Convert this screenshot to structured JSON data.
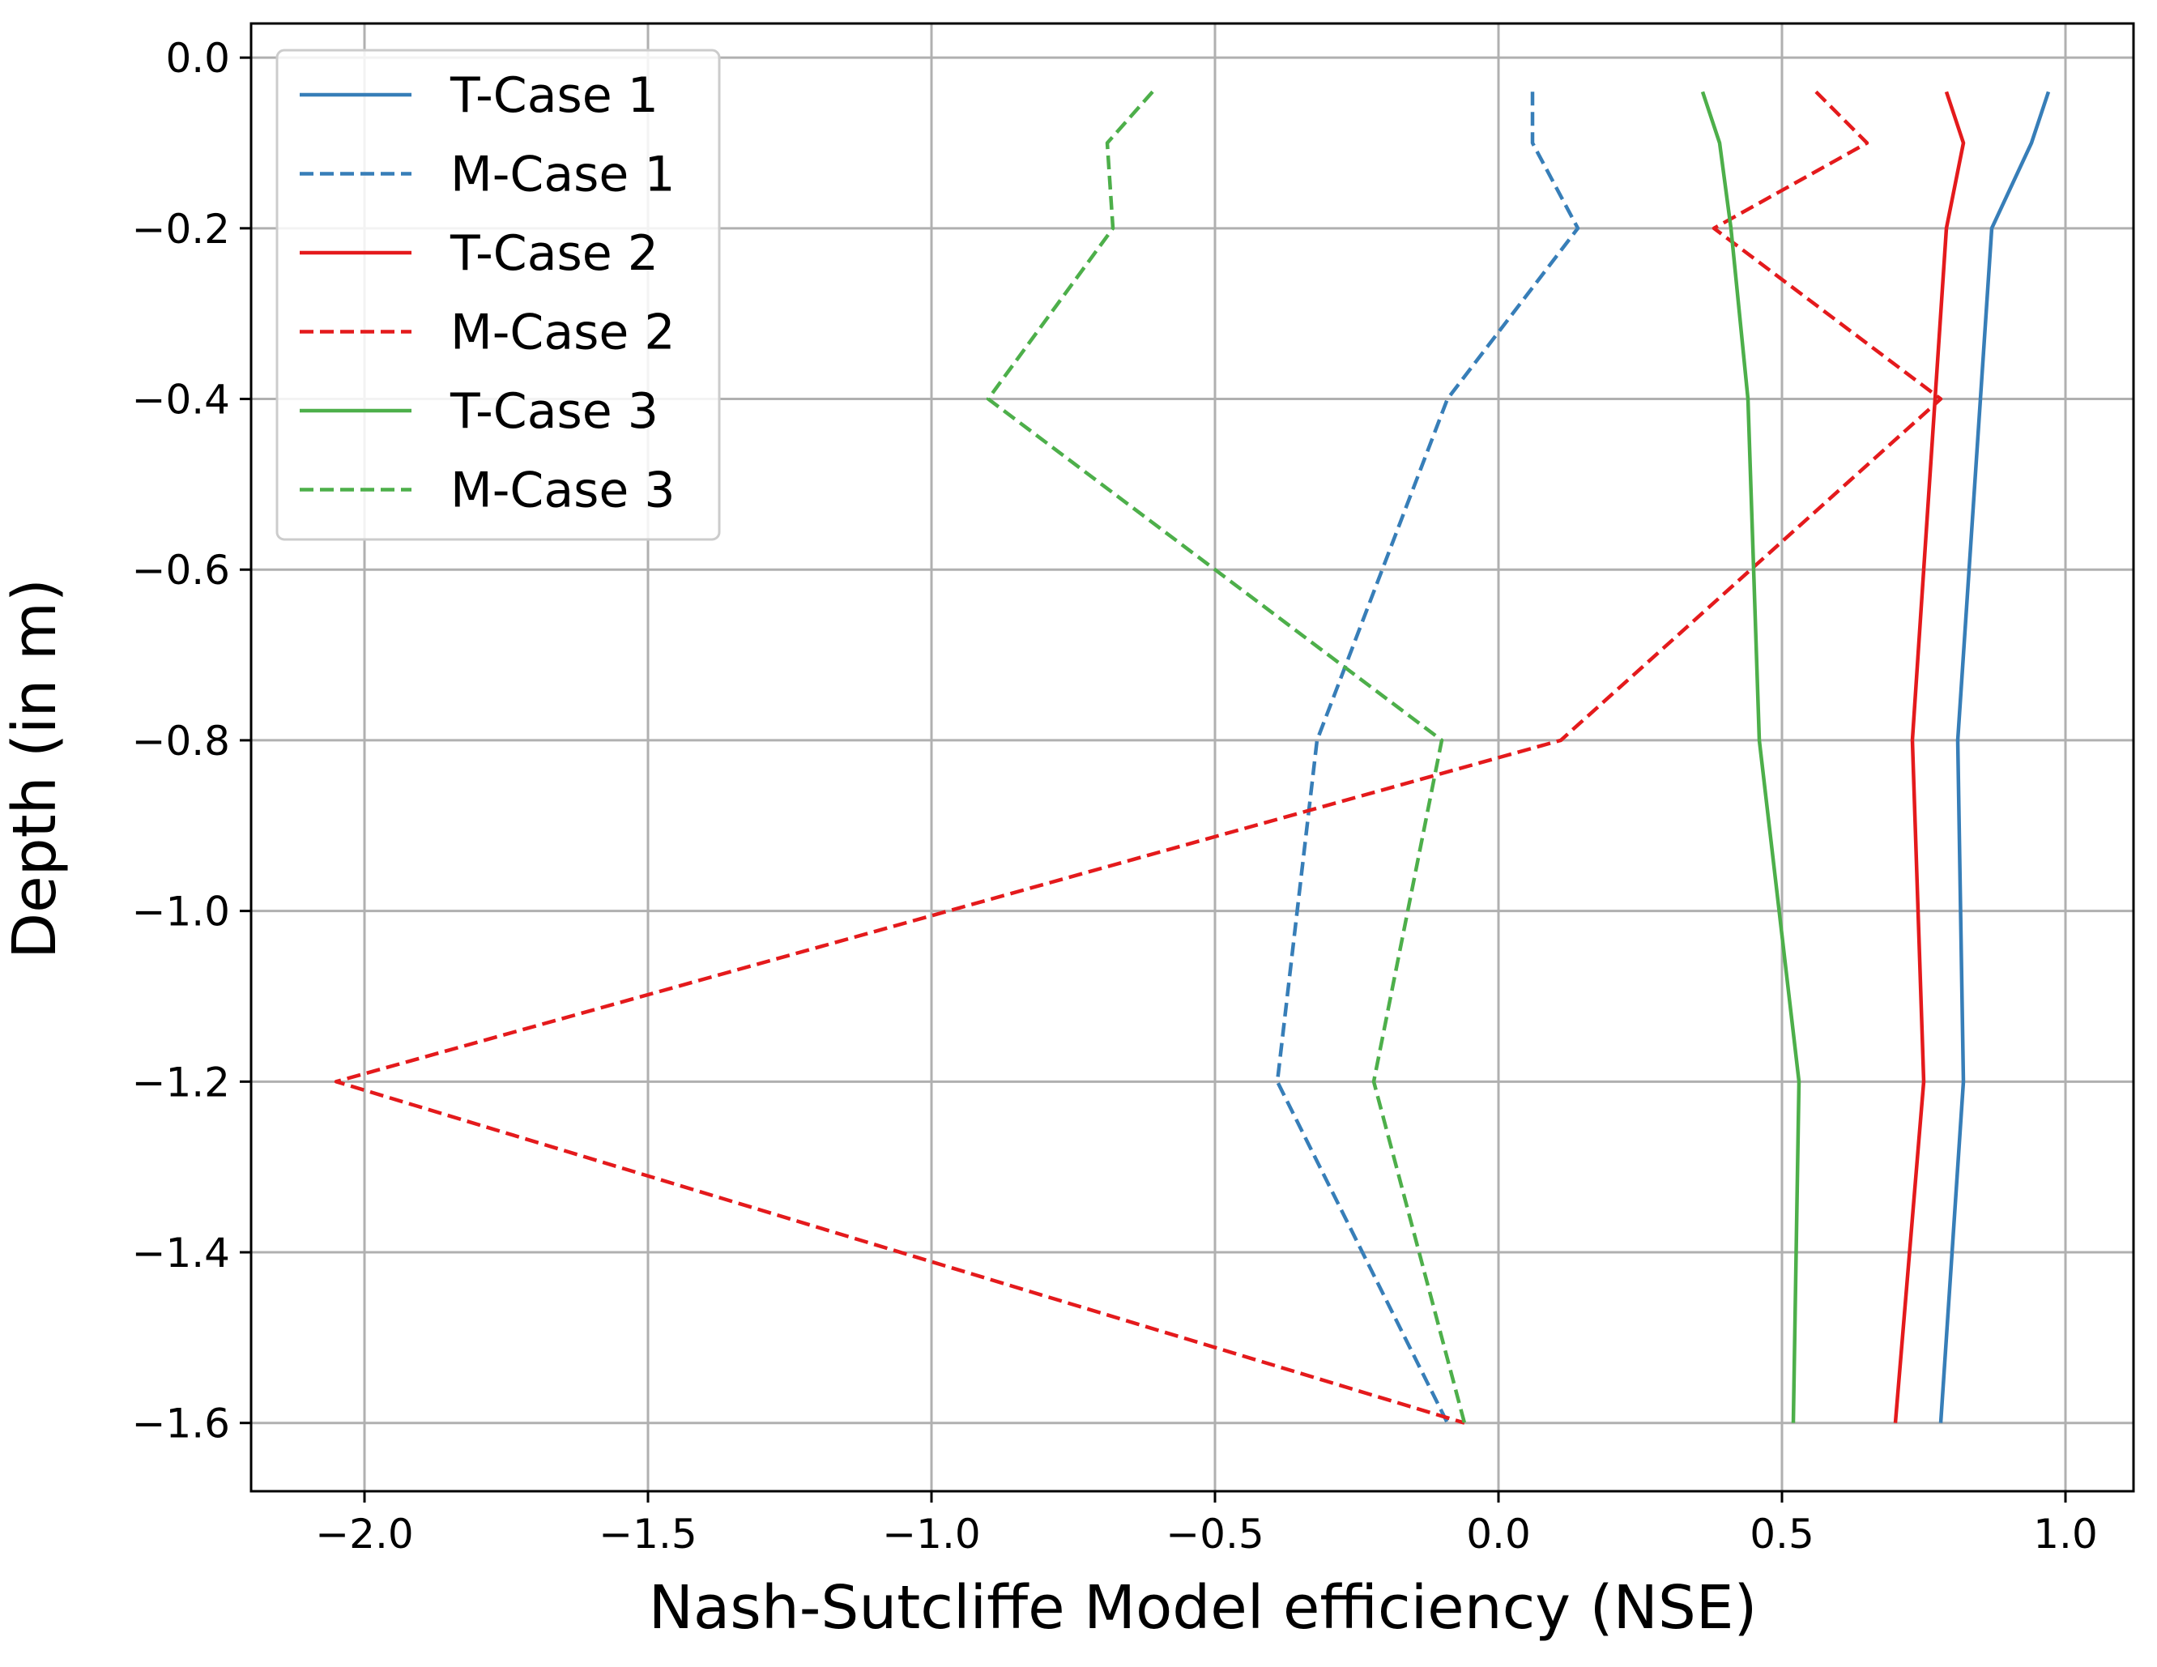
{
  "chart_data": {
    "type": "line",
    "xlabel": "Nash-Sutcliffe Model efficiency (NSE)",
    "ylabel": "Depth (in m)",
    "xlim": [
      -2.2,
      1.12
    ],
    "ylim": [
      -1.68,
      0.04
    ],
    "xticks": [
      -2.0,
      -1.5,
      -1.0,
      -0.5,
      0.0,
      0.5,
      1.0
    ],
    "xtick_labels": [
      "−2.0",
      "−1.5",
      "−1.0",
      "−0.5",
      "0.0",
      "0.5",
      "1.0"
    ],
    "yticks": [
      0.0,
      -0.2,
      -0.4,
      -0.6,
      -0.8,
      -1.0,
      -1.2,
      -1.4,
      -1.6
    ],
    "ytick_labels": [
      "0.0",
      "−0.2",
      "−0.4",
      "−0.6",
      "−0.8",
      "−1.0",
      "−1.2",
      "−1.4",
      "−1.6"
    ],
    "grid": true,
    "legend_position": "top-left",
    "series": [
      {
        "name": "T-Case 1",
        "color": "#377eb8",
        "dash": "solid",
        "points": [
          [
            0.97,
            -0.04
          ],
          [
            0.94,
            -0.1
          ],
          [
            0.87,
            -0.2
          ],
          [
            0.85,
            -0.4
          ],
          [
            0.81,
            -0.8
          ],
          [
            0.82,
            -1.2
          ],
          [
            0.78,
            -1.6
          ]
        ]
      },
      {
        "name": "M-Case 1",
        "color": "#377eb8",
        "dash": "dashed",
        "points": [
          [
            0.06,
            -0.04
          ],
          [
            0.06,
            -0.1
          ],
          [
            0.14,
            -0.2
          ],
          [
            -0.09,
            -0.4
          ],
          [
            -0.32,
            -0.8
          ],
          [
            -0.39,
            -1.2
          ],
          [
            -0.09,
            -1.6
          ]
        ]
      },
      {
        "name": "T-Case 2",
        "color": "#e41a1c",
        "dash": "solid",
        "points": [
          [
            0.79,
            -0.04
          ],
          [
            0.82,
            -0.1
          ],
          [
            0.79,
            -0.2
          ],
          [
            0.77,
            -0.4
          ],
          [
            0.73,
            -0.8
          ],
          [
            0.75,
            -1.2
          ],
          [
            0.7,
            -1.6
          ]
        ]
      },
      {
        "name": "M-Case 2",
        "color": "#e41a1c",
        "dash": "dashed",
        "points": [
          [
            0.56,
            -0.04
          ],
          [
            0.65,
            -0.1
          ],
          [
            0.38,
            -0.2
          ],
          [
            0.78,
            -0.4
          ],
          [
            0.11,
            -0.8
          ],
          [
            -2.05,
            -1.2
          ],
          [
            -0.06,
            -1.6
          ]
        ]
      },
      {
        "name": "T-Case 3",
        "color": "#4daf4a",
        "dash": "solid",
        "points": [
          [
            0.36,
            -0.04
          ],
          [
            0.39,
            -0.1
          ],
          [
            0.41,
            -0.2
          ],
          [
            0.44,
            -0.4
          ],
          [
            0.46,
            -0.8
          ],
          [
            0.53,
            -1.2
          ],
          [
            0.52,
            -1.6
          ]
        ]
      },
      {
        "name": "M-Case 3",
        "color": "#4daf4a",
        "dash": "dashed",
        "points": [
          [
            -0.61,
            -0.04
          ],
          [
            -0.69,
            -0.1
          ],
          [
            -0.68,
            -0.2
          ],
          [
            -0.9,
            -0.4
          ],
          [
            -0.1,
            -0.8
          ],
          [
            -0.22,
            -1.2
          ],
          [
            -0.06,
            -1.6
          ]
        ]
      }
    ]
  }
}
